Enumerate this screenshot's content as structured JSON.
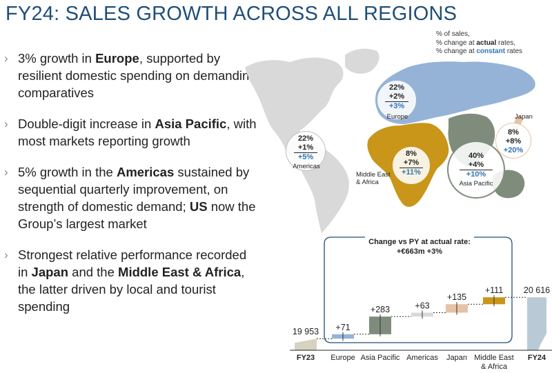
{
  "title": "FY24: SALES GROWTH ACROSS ALL REGIONS",
  "bullets": [
    {
      "pre": "3% growth in ",
      "bold": "Europe",
      "post": ", supported by resilient domestic spending on demanding comparatives"
    },
    {
      "pre": "Double-digit increase in ",
      "bold": "Asia Pacific",
      "post": ", with most markets reporting growth"
    },
    {
      "pre": "5% growth in the ",
      "bold": "Americas",
      "post": " sustained by sequential quarterly improvement, on strength of domestic demand; ",
      "bold2": "US",
      "post2": " now the Group’s largest market"
    },
    {
      "pre": "Strongest relative performance recorded in ",
      "bold": "Japan",
      "post": " and the ",
      "bold2": "Middle East & Africa",
      "post2": ", the latter driven by local and tourist spending"
    }
  ],
  "legend": {
    "line1": "% of sales,",
    "line2_pre": "% change at ",
    "line2_em": "actual",
    "line2_post": " rates,",
    "line3_pre": "% change at ",
    "line3_em": "constant",
    "line3_post": " rates"
  },
  "regions": [
    {
      "key": "europe",
      "share": "22%",
      "actual": "+2%",
      "constant": "+3%",
      "label": "Europe"
    },
    {
      "key": "americas",
      "share": "22%",
      "actual": "+1%",
      "constant": "+5%",
      "label": "Americas"
    },
    {
      "key": "mea",
      "share": "8%",
      "actual": "+7%",
      "constant": "+11%",
      "label": "Middle East\n& Africa"
    },
    {
      "key": "apac",
      "share": "40%",
      "actual": "+4%",
      "constant": "+10%",
      "label": "Asia Pacific"
    },
    {
      "key": "japan",
      "share": "8%",
      "actual": "+8%",
      "constant": "+20%",
      "label": "Japan"
    }
  ],
  "colors": {
    "title": "#1f4e79",
    "europe": "#95b3d7",
    "asia_pacific": "#7f8c7c",
    "americas": "#d9d9d9",
    "middle_east_africa": "#c9961a",
    "japan": "#e6c2a6",
    "fy23": "#d5d2c0",
    "fy24": "#b9cad6",
    "constant_blue": "#2e75b6"
  },
  "chart_data": {
    "type": "bar",
    "subtype": "waterfall",
    "header_line1": "Change vs PY at actual rate:",
    "header_line2": "+€663m +3%",
    "categories": [
      "FY23",
      "Europe",
      "Asia Pacific",
      "Americas",
      "Japan",
      "Middle East\n& Africa",
      "FY24"
    ],
    "values": [
      19953,
      71,
      283,
      63,
      135,
      111,
      20616
    ],
    "labels": [
      "19 953",
      "+71",
      "+283",
      "+63",
      "+135",
      "+111",
      "20 616"
    ],
    "bar_kinds": [
      "total",
      "delta",
      "delta",
      "delta",
      "delta",
      "delta",
      "total"
    ],
    "bold_categories": [
      "FY23",
      "FY24"
    ]
  }
}
